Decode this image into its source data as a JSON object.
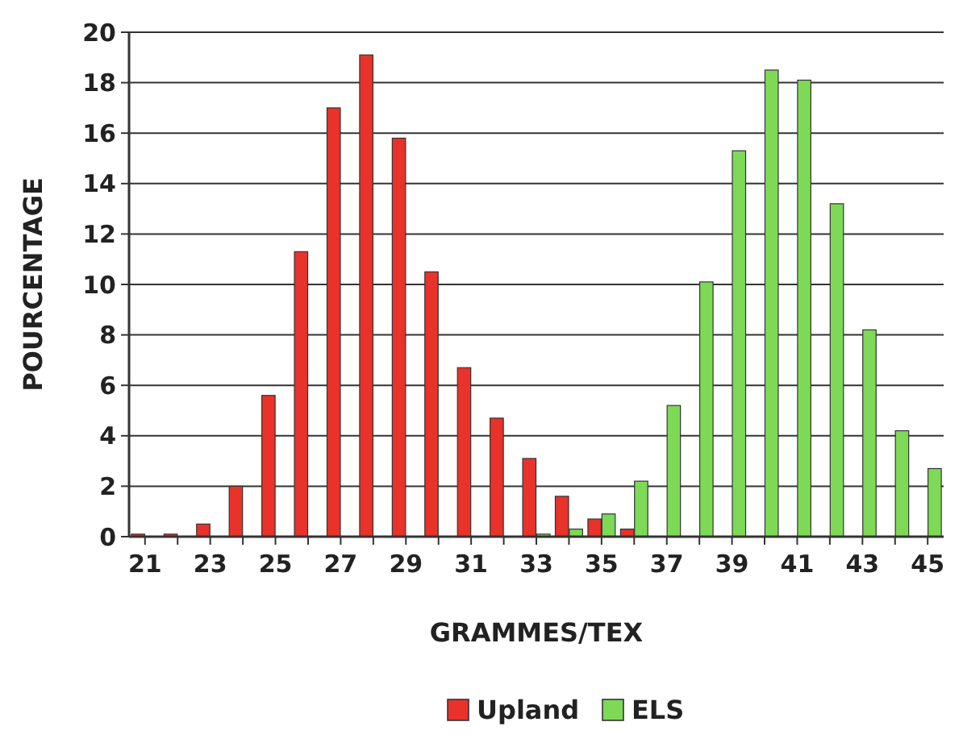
{
  "chart_data": {
    "type": "bar",
    "xlabel": "GRAMMES/TEX",
    "ylabel": "POURCENTAGE",
    "categories": [
      "21",
      null,
      "23",
      null,
      "25",
      null,
      "27",
      null,
      "29",
      null,
      "31",
      null,
      "33",
      null,
      "35",
      null,
      "37",
      null,
      "39",
      null,
      "41",
      null,
      "43",
      null,
      "45"
    ],
    "series": [
      {
        "name": "Upland",
        "color": "#e8322a",
        "values": [
          0.1,
          0.1,
          0.5,
          2.0,
          5.6,
          11.3,
          17.0,
          19.1,
          15.8,
          10.5,
          6.7,
          4.7,
          3.1,
          1.6,
          0.7,
          0.3,
          null,
          null,
          null,
          null,
          null,
          null,
          null,
          null,
          null
        ]
      },
      {
        "name": "ELS",
        "color": "#7ed957",
        "values": [
          null,
          null,
          null,
          null,
          null,
          null,
          null,
          null,
          null,
          null,
          null,
          null,
          0.1,
          0.3,
          0.9,
          2.2,
          5.2,
          10.1,
          15.3,
          18.5,
          18.1,
          13.2,
          8.2,
          4.2,
          2.7
        ]
      }
    ],
    "ylim": [
      0,
      20
    ],
    "yticks": [
      0,
      2,
      4,
      6,
      8,
      10,
      12,
      14,
      16,
      18,
      20
    ],
    "grid": "y",
    "legend": "bottom"
  }
}
